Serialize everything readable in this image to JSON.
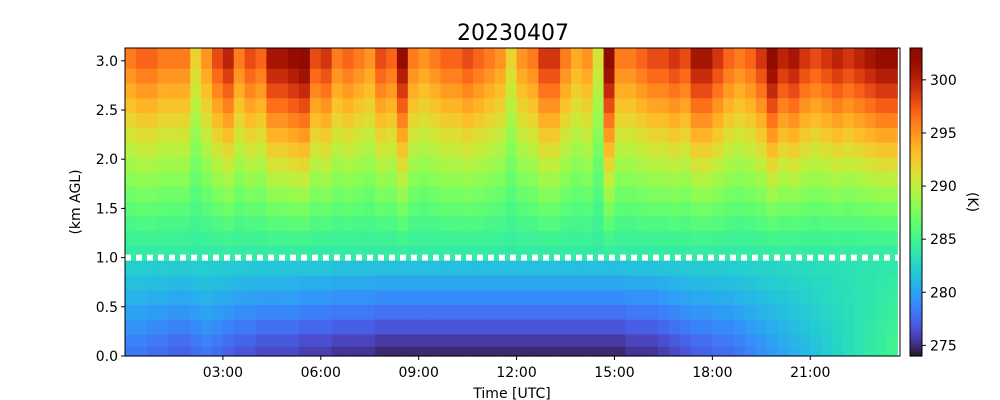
{
  "chart_data": {
    "type": "heatmap",
    "title": "20230407",
    "xlabel": "Time [UTC]",
    "ylabel": "(km AGL)",
    "colorbar_label": "(K)",
    "x_range_hours": [
      0,
      23.75
    ],
    "x_ticks": [
      "03:00",
      "06:00",
      "09:00",
      "12:00",
      "15:00",
      "18:00",
      "21:00"
    ],
    "x_tick_hours": [
      3,
      6,
      9,
      12,
      15,
      18,
      21
    ],
    "y_range_km": [
      0,
      3.13
    ],
    "y_ticks": [
      "0.0",
      "0.5",
      "1.0",
      "1.5",
      "2.0",
      "2.5",
      "3.0"
    ],
    "y_tick_values": [
      0,
      0.5,
      1.0,
      1.5,
      2.0,
      2.5,
      3.0
    ],
    "colorbar_range": [
      274,
      303
    ],
    "colorbar_ticks": [
      "275",
      "280",
      "285",
      "290",
      "295",
      "300"
    ],
    "colorbar_tick_values": [
      275,
      280,
      285,
      290,
      295,
      300
    ],
    "colormap": "turbo",
    "time_step_minutes": 20,
    "height_levels_km": [
      0.05,
      0.15,
      0.3,
      0.45,
      0.6,
      0.75,
      0.9,
      1.05,
      1.2,
      1.35,
      1.5,
      1.65,
      1.8,
      1.95,
      2.1,
      2.25,
      2.4,
      2.55,
      2.7,
      2.85,
      3.0
    ],
    "column_profiles": {
      "surface_temperature_K": [
        278,
        278,
        277.5,
        277.5,
        277,
        277,
        277.5,
        278,
        277.5,
        277,
        276.5,
        276.5,
        276,
        276,
        276,
        276,
        275.5,
        275.5,
        275.5,
        275,
        275,
        275,
        275,
        274.5,
        274.5,
        274.5,
        274.5,
        274.5,
        274.5,
        274.5,
        274.5,
        274.5,
        274.5,
        274.5,
        274.5,
        274.5,
        274.5,
        274.5,
        274.5,
        274.5,
        274.5,
        274.5,
        274.5,
        274.5,
        274.5,
        274.5,
        275,
        275,
        275,
        275.5,
        276,
        276.5,
        277,
        277,
        277.5,
        277.5,
        278,
        278.5,
        279,
        279.5,
        280,
        280.5,
        281,
        281.5,
        282,
        282.5,
        283,
        283.5,
        284,
        284.5,
        285
      ],
      "top_temperature_K": [
        296,
        297,
        297,
        296,
        296,
        296,
        292,
        295,
        298,
        300,
        296,
        298,
        297,
        301,
        301,
        302,
        303,
        298,
        299,
        296,
        297,
        296,
        295,
        298,
        297,
        302,
        296,
        295,
        296,
        297,
        297,
        298,
        297,
        296,
        295,
        292,
        295,
        296,
        299,
        299,
        296,
        294,
        295,
        291,
        303,
        296,
        296,
        297,
        298,
        298,
        299,
        298,
        301,
        301,
        299,
        297,
        296,
        297,
        299,
        303,
        300,
        301,
        299,
        298,
        299,
        300,
        299,
        300,
        301,
        302,
        302
      ]
    },
    "annotation": "white dashed line at 1.0 km AGL"
  }
}
